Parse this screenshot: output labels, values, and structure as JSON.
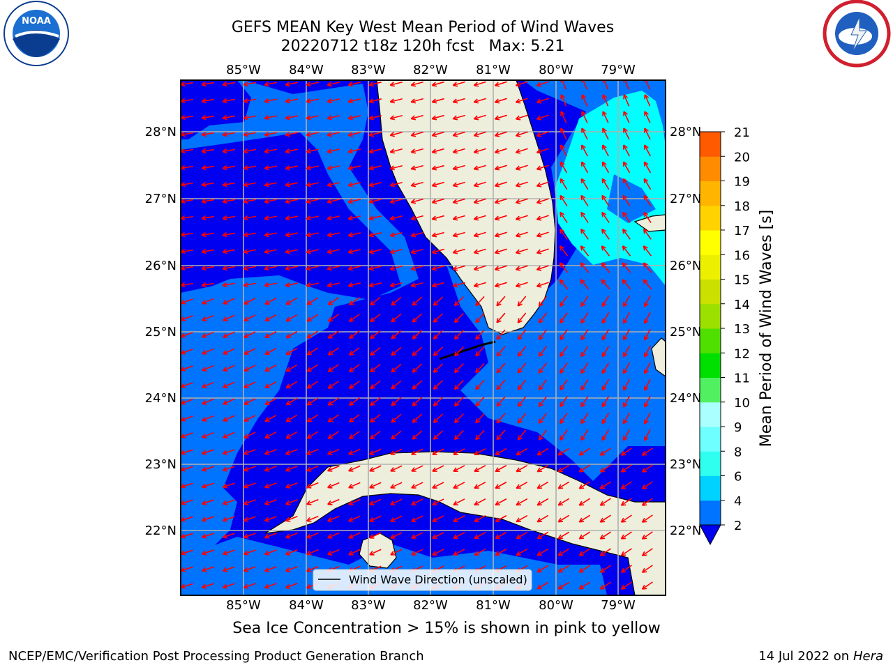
{
  "header": {
    "title_line1": "GEFS MEAN Key West Mean Period of Wind Waves",
    "title_line2": "20220712 t18z 120h fcst   Max: 5.21"
  },
  "logos": {
    "left": {
      "icon": "noaa-logo",
      "text": "NOAA"
    },
    "right": {
      "icon": "nws-logo"
    }
  },
  "map": {
    "lon_labels": [
      "85°W",
      "84°W",
      "83°W",
      "82°W",
      "81°W",
      "80°W",
      "79°W"
    ],
    "lat_labels": [
      "28°N",
      "27°N",
      "26°N",
      "25°N",
      "24°N",
      "23°N",
      "22°N"
    ],
    "legend_label": "Wind Wave Direction (unscaled)",
    "arrow_color": "#ff0000",
    "land_color": "#eeeedd",
    "grid_color": "#b0b0b0"
  },
  "colorbar": {
    "label": "Mean Period of Wind Waves [s]",
    "ticks": [
      "2",
      "4",
      "6",
      "8",
      "9",
      "10",
      "11",
      "12",
      "13",
      "14",
      "15",
      "16",
      "17",
      "18",
      "19",
      "20",
      "21"
    ],
    "colors": [
      "#0073ff",
      "#00d2ff",
      "#2effee",
      "#6effff",
      "#aaffff",
      "#50f060",
      "#00e000",
      "#50e000",
      "#9be000",
      "#cce000",
      "#ecf000",
      "#ffff00",
      "#ffd200",
      "#ffb400",
      "#ff8c00",
      "#ff5a00",
      "#ff2800",
      "#ff0000"
    ]
  },
  "footer": {
    "caption": "Sea Ice Concentration > 15% is shown in pink to yellow",
    "left": "NCEP/EMC/Verification Post Processing Product Generation Branch",
    "date": "14 Jul 2022 on ",
    "host": "Hera"
  }
}
